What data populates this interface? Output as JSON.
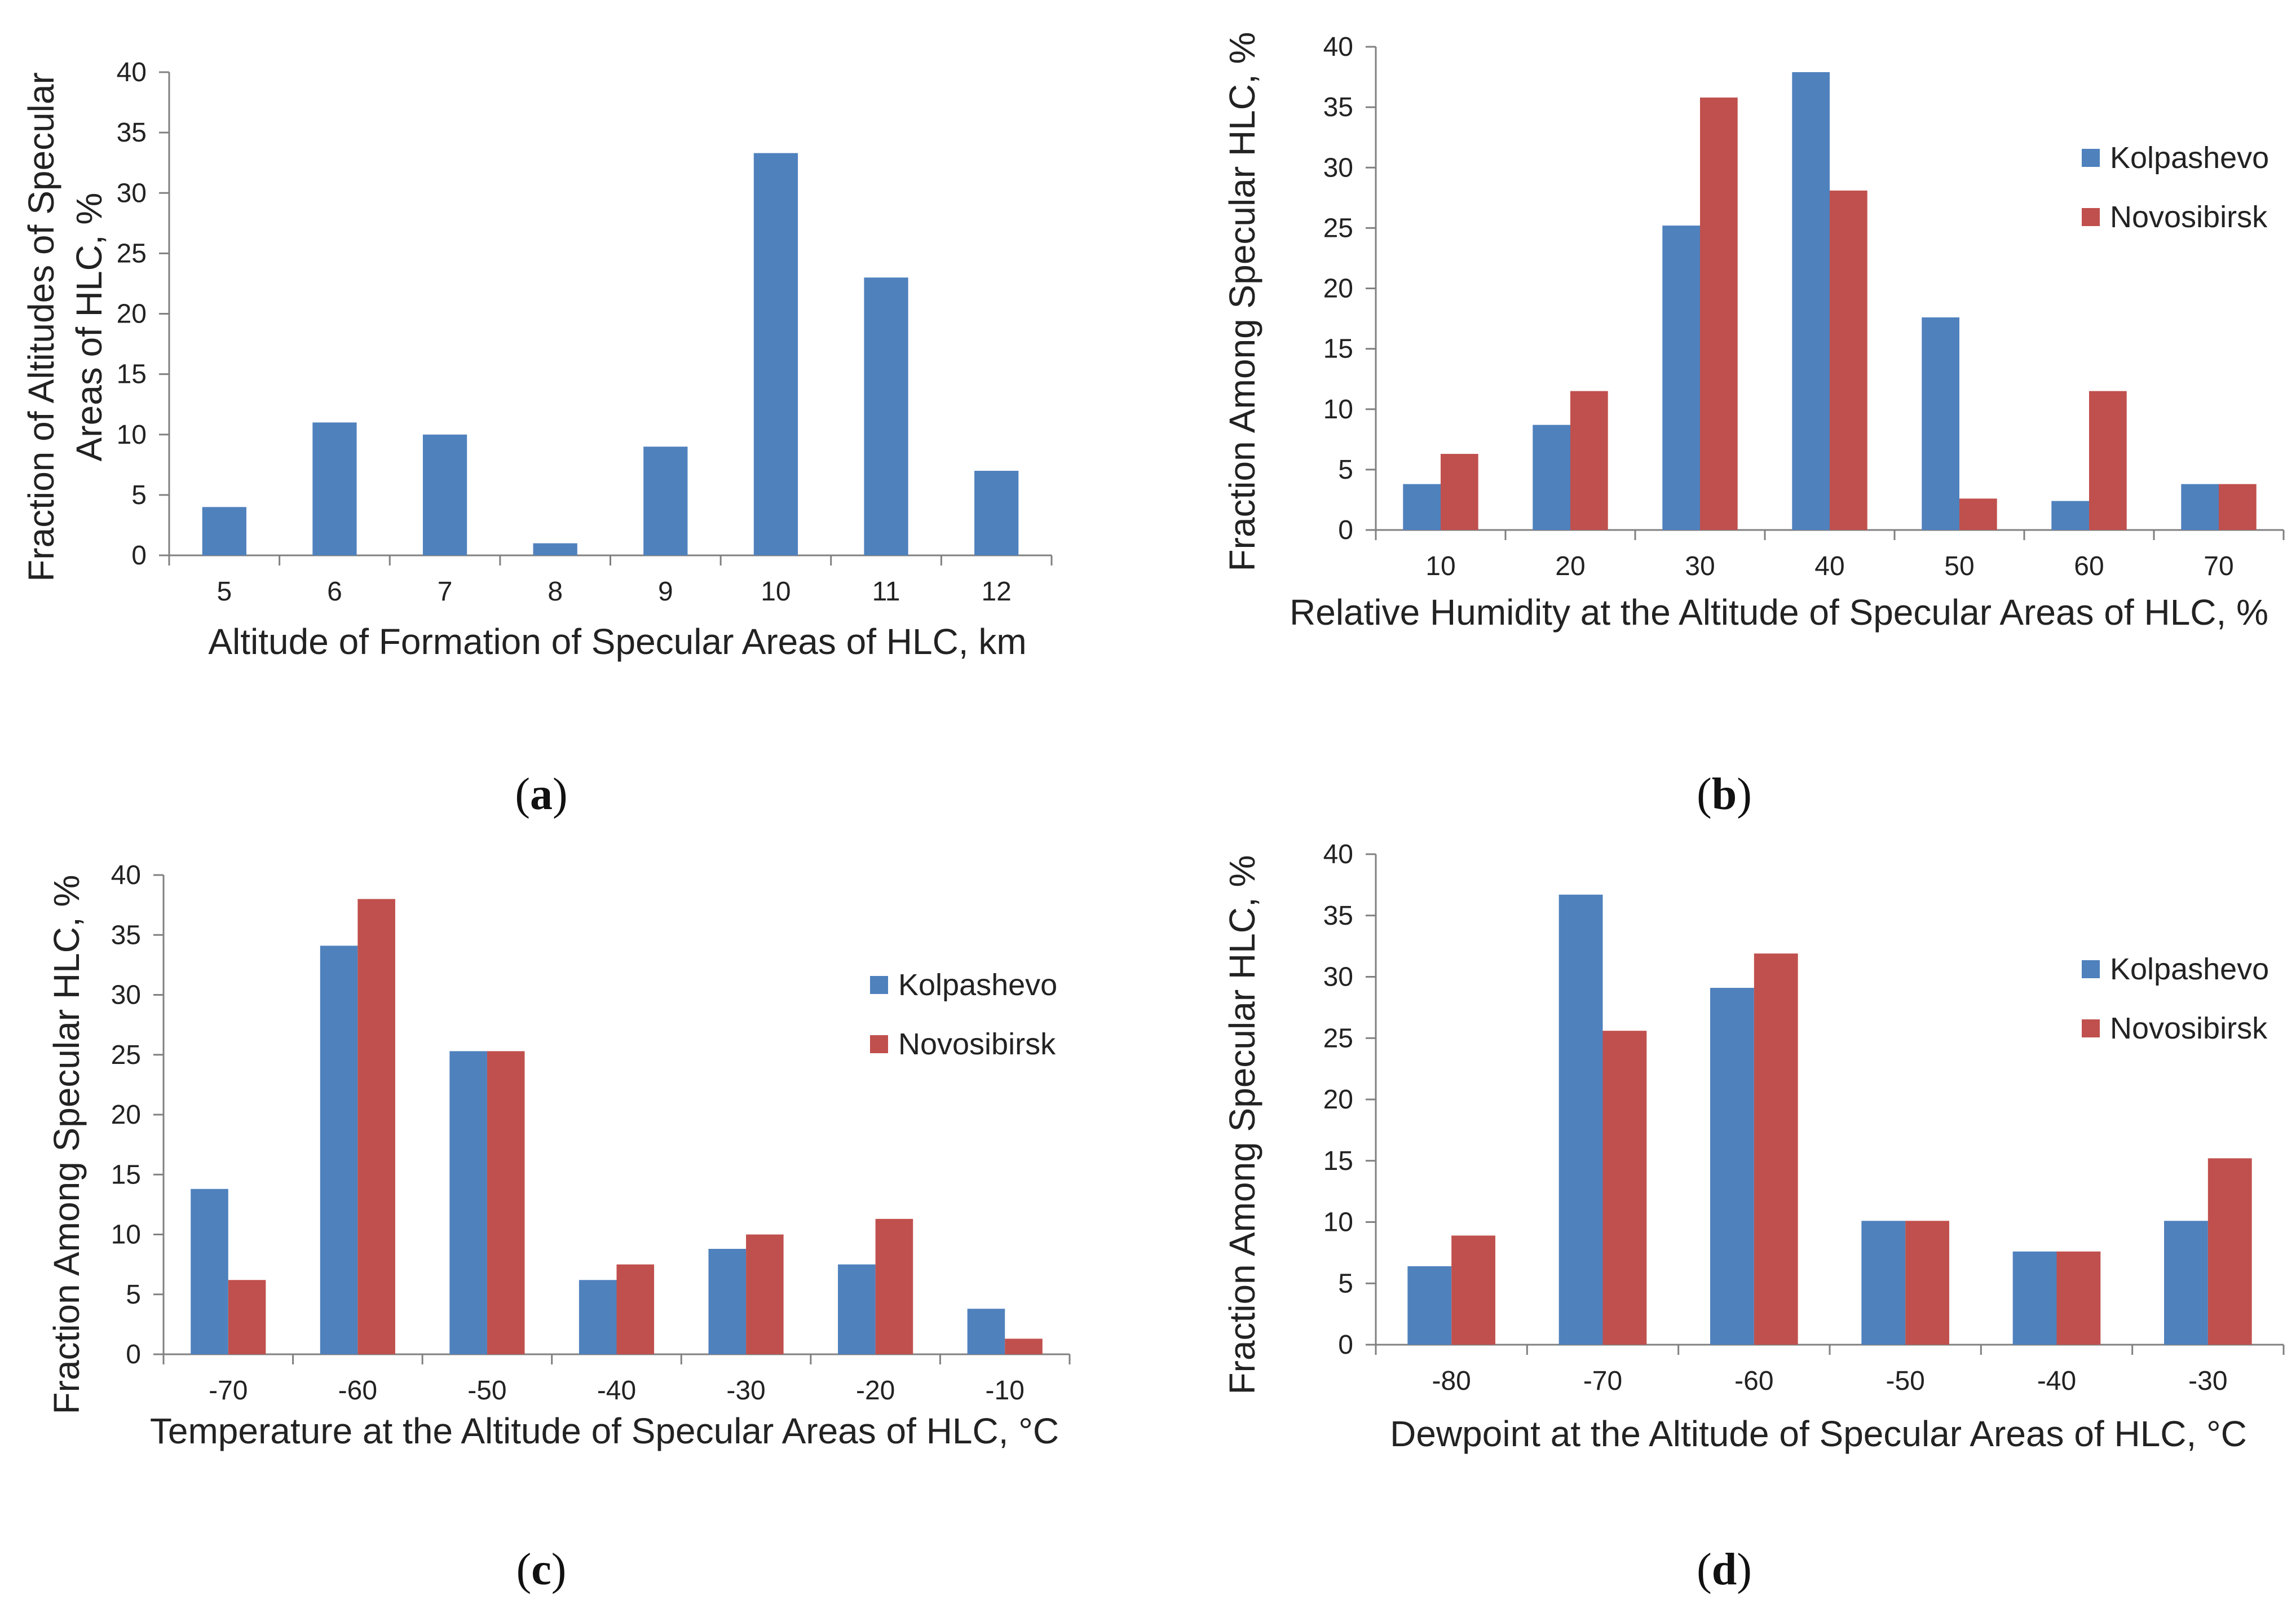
{
  "figure": {
    "captions": [
      {
        "open": "(",
        "letter": "a",
        "close": ")"
      },
      {
        "open": "(",
        "letter": "b",
        "close": ")"
      },
      {
        "open": "(",
        "letter": "c",
        "close": ")"
      },
      {
        "open": "(",
        "letter": "d",
        "close": ")"
      }
    ]
  },
  "colors": {
    "kolpashevo": "#4F81BD",
    "novosibirsk": "#C0504D",
    "axis": "#808080"
  },
  "chart_data": [
    {
      "type": "bar",
      "panel": "a",
      "xlabel": "Altitude of Formation of Specular Areas of HLC, km",
      "ylabel": "Fraction of Altitudes of Specular Areas of HLC, %",
      "ylabel_lines": [
        "Fraction of Altitudes of Specular",
        "Areas of HLC, %"
      ],
      "ylim": [
        0,
        40
      ],
      "yticks": [
        0,
        5,
        10,
        15,
        20,
        25,
        30,
        35,
        40
      ],
      "categories": [
        "5",
        "6",
        "7",
        "8",
        "9",
        "10",
        "11",
        "12"
      ],
      "series": [
        {
          "name": "",
          "values": [
            4,
            11,
            10,
            1,
            9,
            33.3,
            23,
            7
          ]
        }
      ],
      "legend": null
    },
    {
      "type": "bar",
      "panel": "b",
      "xlabel": "Relative Humidity at the Altitude of Specular Areas of HLC, %",
      "ylabel": "Fraction Among Specular HLC, %",
      "ylabel_lines": [
        "Fraction Among Specular HLC, %"
      ],
      "ylim": [
        0,
        40
      ],
      "yticks": [
        0,
        5,
        10,
        15,
        20,
        25,
        30,
        35,
        40
      ],
      "categories": [
        "10",
        "20",
        "30",
        "40",
        "50",
        "60",
        "70"
      ],
      "series": [
        {
          "name": "Kolpashevo",
          "values": [
            3.8,
            8.7,
            25.2,
            37.9,
            17.6,
            2.4,
            3.8
          ]
        },
        {
          "name": "Novosibirsk",
          "values": [
            6.3,
            11.5,
            35.8,
            28.1,
            2.6,
            11.5,
            3.8
          ]
        }
      ],
      "legend": "right"
    },
    {
      "type": "bar",
      "panel": "c",
      "xlabel": "Temperature at the Altitude of Specular Areas of HLC, °C",
      "ylabel": "Fraction Among Specular HLC, %",
      "ylabel_lines": [
        "Fraction Among Specular HLC, %"
      ],
      "ylim": [
        0,
        40
      ],
      "yticks": [
        0,
        5,
        10,
        15,
        20,
        25,
        30,
        35,
        40
      ],
      "categories": [
        "-70",
        "-60",
        "-50",
        "-40",
        "-30",
        "-20",
        "-10"
      ],
      "series": [
        {
          "name": "Kolpashevo",
          "values": [
            13.8,
            34.1,
            25.3,
            6.2,
            8.8,
            7.5,
            3.8
          ]
        },
        {
          "name": "Novosibirsk",
          "values": [
            6.2,
            38,
            25.3,
            7.5,
            10,
            11.3,
            1.3
          ]
        }
      ],
      "legend": "right"
    },
    {
      "type": "bar",
      "panel": "d",
      "xlabel": "Dewpoint at the Altitude of Specular Areas of HLC, °C",
      "ylabel": "Fraction Among Specular HLC, %",
      "ylabel_lines": [
        "Fraction Among Specular HLC, %"
      ],
      "ylim": [
        0,
        40
      ],
      "yticks": [
        0,
        5,
        10,
        15,
        20,
        25,
        30,
        35,
        40
      ],
      "categories": [
        "-80",
        "-70",
        "-60",
        "-50",
        "-40",
        "-30"
      ],
      "series": [
        {
          "name": "Kolpashevo",
          "values": [
            6.4,
            36.7,
            29.1,
            10.1,
            7.6,
            10.1
          ]
        },
        {
          "name": "Novosibirsk",
          "values": [
            8.9,
            25.6,
            31.9,
            10.1,
            7.6,
            15.2
          ]
        }
      ],
      "legend": "right"
    }
  ]
}
